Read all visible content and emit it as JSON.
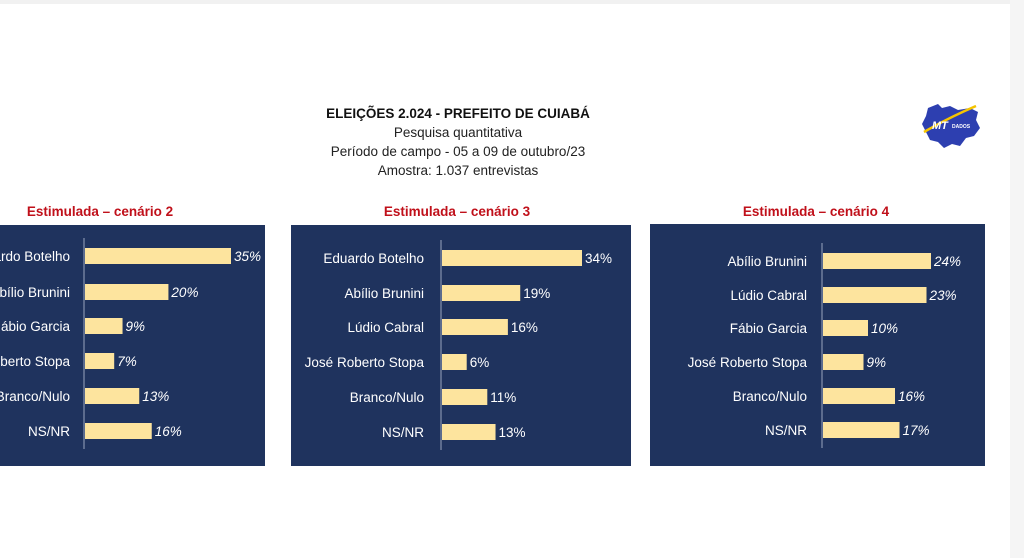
{
  "header": {
    "title": "ELEIÇÕES 2.024  -  PREFEITO DE CUIABÁ",
    "subtitle": "Pesquisa quantitativa",
    "period": "Período de campo - 05 a 09 de outubro/23",
    "sample": "Amostra: 1.037 entrevistas"
  },
  "logo": {
    "text_main": "MT",
    "text_sub": "DADOS",
    "icon": "mato-grosso-map-logo"
  },
  "colors": {
    "panel": "#1f335e",
    "bar": "#fde49e",
    "axis": "#9aa5bd",
    "title_red": "#c0101a",
    "text": "#ffffff"
  },
  "chart_data": [
    {
      "type": "bar",
      "orientation": "horizontal",
      "title": "Estimulada – cenário 2",
      "categories": [
        "ardo Botelho",
        "bílio Brunini",
        "ábio Garcia",
        "oberto Stopa",
        "Branco/Nulo",
        "NS/NR"
      ],
      "values": [
        35,
        20,
        9,
        7,
        13,
        16
      ],
      "value_labels": [
        "35%",
        "20%",
        "9%",
        "7%",
        "13%",
        "16%"
      ],
      "label_style": "italic",
      "xlim": [
        0,
        35
      ]
    },
    {
      "type": "bar",
      "orientation": "horizontal",
      "title": "Estimulada – cenário 3",
      "categories": [
        "Eduardo Botelho",
        "Abílio Brunini",
        "Lúdio Cabral",
        "José Roberto Stopa",
        "Branco/Nulo",
        "NS/NR"
      ],
      "values": [
        34,
        19,
        16,
        6,
        11,
        13
      ],
      "value_labels": [
        "34%",
        "19%",
        "16%",
        "6%",
        "11%",
        "13%"
      ],
      "label_style": "normal",
      "xlim": [
        0,
        34
      ]
    },
    {
      "type": "bar",
      "orientation": "horizontal",
      "title": "Estimulada – cenário 4",
      "categories": [
        "Abílio Brunini",
        "Lúdio Cabral",
        "Fábio Garcia",
        "José Roberto Stopa",
        "Branco/Nulo",
        "NS/NR"
      ],
      "values": [
        24,
        23,
        10,
        9,
        16,
        17
      ],
      "value_labels": [
        "24%",
        "23%",
        "10%",
        "9%",
        "16%",
        "17%"
      ],
      "label_style": "italic",
      "xlim": [
        0,
        24
      ]
    }
  ]
}
